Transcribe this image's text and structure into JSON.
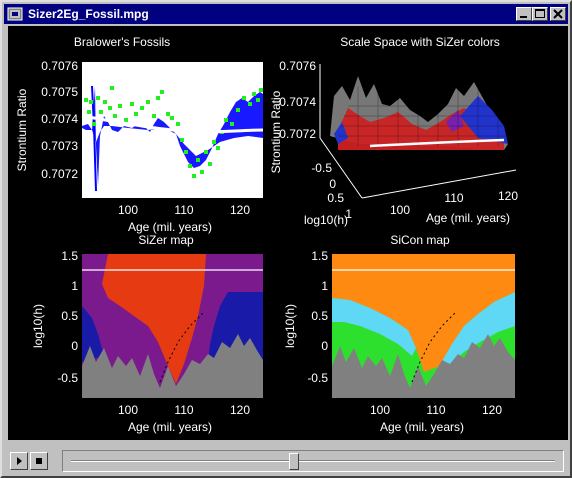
{
  "window": {
    "title": "Sizer2Eg_Fossil.mpg",
    "icon": "film-icon",
    "buttons": [
      "minimize-icon",
      "maximize-icon",
      "close-icon"
    ]
  },
  "plots": {
    "fossils": {
      "title": "Bralower's Fossils",
      "ylabel": "Strontium Ratio",
      "xlabel": "Age (mil. years)",
      "yticks": [
        "0.7076",
        "0.7075",
        "0.7074",
        "0.7073",
        "0.7072"
      ],
      "xticks": [
        "100",
        "110",
        "120"
      ]
    },
    "scalespace": {
      "title": "Scale Space with SiZer colors",
      "zlabel": "Strontium Ratio",
      "zticks": [
        "0.7076",
        "0.7074",
        "0.7072"
      ],
      "hticks": [
        "-0.5",
        "0",
        "0.5",
        "1"
      ],
      "hlabel": "log10(h)",
      "xticks": [
        "100",
        "110",
        "120"
      ],
      "xlabel": "Age (mil. years)"
    },
    "sizer": {
      "title": "SiZer map",
      "ylabel": "log10(h)",
      "xlabel": "Age (mil. years)",
      "yticks": [
        "1.5",
        "1",
        "0.5",
        "0",
        "-0.5"
      ],
      "xticks": [
        "100",
        "110",
        "120"
      ]
    },
    "sicon": {
      "title": "SiCon map",
      "ylabel": "log10(h)",
      "xlabel": "Age (mil. years)",
      "yticks": [
        "1.5",
        "1",
        "0.5",
        "0",
        "-0.5"
      ],
      "xticks": [
        "100",
        "110",
        "120"
      ]
    }
  },
  "controls": {
    "play_icon": "play-icon",
    "stop_icon": "stop-icon",
    "progress": 0.46
  }
}
